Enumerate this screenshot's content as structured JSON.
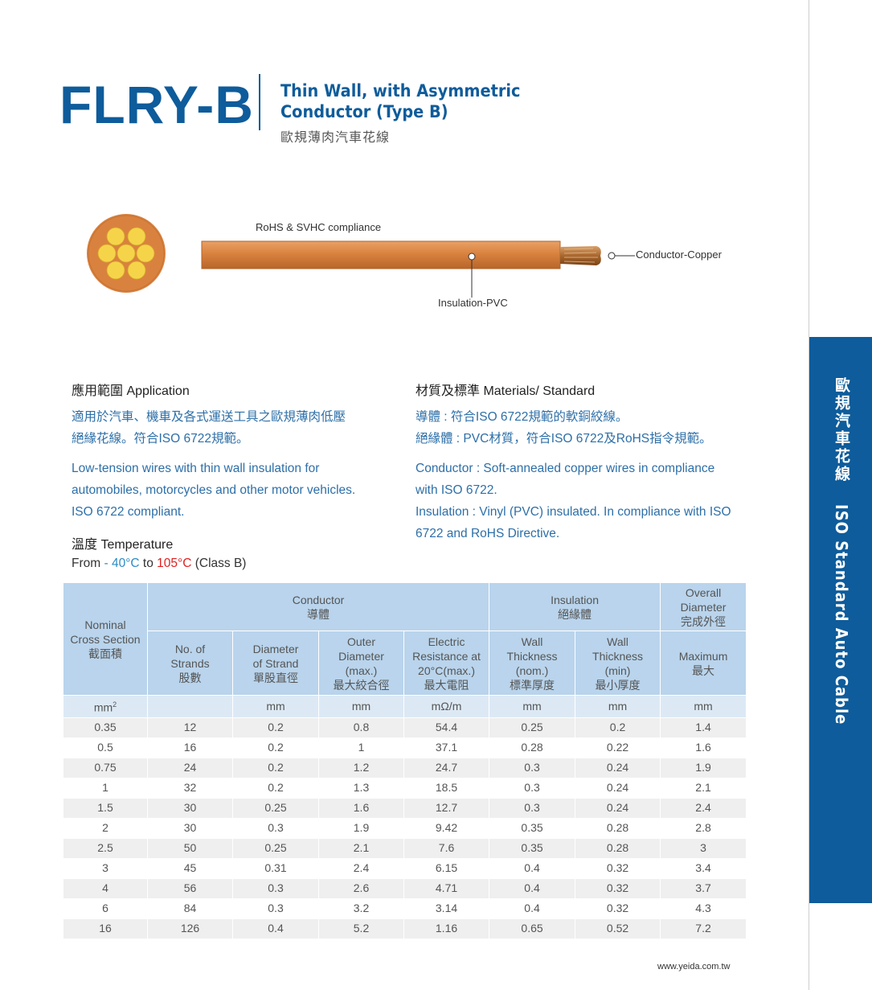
{
  "header": {
    "model": "FLRY-B",
    "title_en_line1": "Thin Wall, with Asymmetric",
    "title_en_line2": "Conductor (Type B)",
    "title_cn": "歐規薄肉汽車花線"
  },
  "illustration": {
    "rohs_label": "RoHS & SVHC compliance",
    "conductor_label": "Conductor-Copper",
    "insulation_label": "Insulation-PVC"
  },
  "application": {
    "heading": "應用範圍 Application",
    "cn_line1": "適用於汽車、機車及各式運送工具之歐規薄肉低壓",
    "cn_line2": "絕緣花線。符合ISO 6722規範。",
    "en_line1": "Low-tension wires with thin wall insulation for",
    "en_line2": "automobiles, motorcycles and other motor vehicles.",
    "en_line3": "ISO 6722 compliant."
  },
  "temperature": {
    "heading": "溫度 Temperature",
    "from": "From",
    "low": "- 40°C",
    "to": "to",
    "high": "105°C",
    "class": "(Class B)"
  },
  "materials": {
    "heading": "材質及標準 Materials/ Standard",
    "cn_line1": "導體 : 符合ISO 6722規範的軟銅絞線。",
    "cn_line2": "絕緣體 : PVC材質，符合ISO 6722及RoHS指令規範。",
    "en_line1": "Conductor : Soft-annealed copper wires in compliance",
    "en_line2": "with ISO 6722.",
    "en_line3": "Insulation : Vinyl (PVC) insulated. In compliance with ISO",
    "en_line4": "6722 and RoHS Directive."
  },
  "table": {
    "group_conductor_en": "Conductor",
    "group_conductor_cn": "導體",
    "group_insulation_en": "Insulation",
    "group_insulation_cn": "絕緣體",
    "group_overall_l1": "Overall",
    "group_overall_l2": "Diameter",
    "group_overall_l3": "完成外徑",
    "col_nominal_l1": "Nominal",
    "col_nominal_l2": "Cross Section",
    "col_nominal_l3": "截面積",
    "col_strands_l1": "No. of",
    "col_strands_l2": "Strands",
    "col_strands_l3": "股數",
    "col_diam_l1": "Diameter",
    "col_diam_l2": "of  Strand",
    "col_diam_l3": "單股直徑",
    "col_outer_l1": "Outer",
    "col_outer_l2": "Diameter",
    "col_outer_l3": "(max.)",
    "col_outer_l4": "最大絞合徑",
    "col_res_l1": "Electric",
    "col_res_l2": "Resistance at",
    "col_res_l3": "20°C(max.)",
    "col_res_l4": "最大電阻",
    "col_wnom_l1": "Wall",
    "col_wnom_l2": "Thickness",
    "col_wnom_l3": "(nom.)",
    "col_wnom_l4": "標準厚度",
    "col_wmin_l1": "Wall",
    "col_wmin_l2": "Thickness",
    "col_wmin_l3": "(min)",
    "col_wmin_l4": "最小厚度",
    "col_max_l1": "Maximum",
    "col_max_l2": "最大",
    "units": [
      "mm",
      "",
      "mm",
      "mm",
      "mΩ/m",
      "mm",
      "mm",
      "mm"
    ],
    "unit_sup": "2",
    "rows": [
      [
        "0.35",
        "12",
        "0.2",
        "0.8",
        "54.4",
        "0.25",
        "0.2",
        "1.4"
      ],
      [
        "0.5",
        "16",
        "0.2",
        "1",
        "37.1",
        "0.28",
        "0.22",
        "1.6"
      ],
      [
        "0.75",
        "24",
        "0.2",
        "1.2",
        "24.7",
        "0.3",
        "0.24",
        "1.9"
      ],
      [
        "1",
        "32",
        "0.2",
        "1.3",
        "18.5",
        "0.3",
        "0.24",
        "2.1"
      ],
      [
        "1.5",
        "30",
        "0.25",
        "1.6",
        "12.7",
        "0.3",
        "0.24",
        "2.4"
      ],
      [
        "2",
        "30",
        "0.3",
        "1.9",
        "9.42",
        "0.35",
        "0.28",
        "2.8"
      ],
      [
        "2.5",
        "50",
        "0.25",
        "2.1",
        "7.6",
        "0.35",
        "0.28",
        "3"
      ],
      [
        "3",
        "45",
        "0.31",
        "2.4",
        "6.15",
        "0.4",
        "0.32",
        "3.4"
      ],
      [
        "4",
        "56",
        "0.3",
        "2.6",
        "4.71",
        "0.4",
        "0.32",
        "3.7"
      ],
      [
        "6",
        "84",
        "0.3",
        "3.2",
        "3.14",
        "0.4",
        "0.32",
        "4.3"
      ],
      [
        "16",
        "126",
        "0.4",
        "5.2",
        "1.16",
        "0.65",
        "0.52",
        "7.2"
      ]
    ]
  },
  "side_tab": {
    "cn": "歐規汽車花線",
    "en": "ISO Standard Auto Cable"
  },
  "footer": {
    "url": "www.yeida.com.tw"
  },
  "colors": {
    "brand": "#0e5c9b",
    "cable": "#d9823f",
    "table_header": "#b9d4ec"
  }
}
